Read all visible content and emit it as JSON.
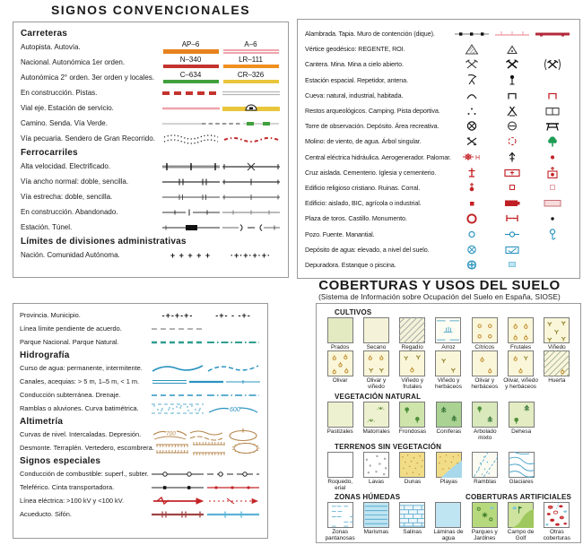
{
  "titles": {
    "main": "SIGNOS  CONVENCIONALES",
    "coberturas": "COBERTURAS Y USOS DEL SUELO",
    "coberturas_sub": "(Sistema de Información sobre Ocupación del Suelo en España, SIOSE)"
  },
  "colors": {
    "autopista_orange": "#e8821e",
    "autovia_pink": "#efa3ab",
    "nacional_red": "#c4332e",
    "autonomica1_orange": "#ef8f1f",
    "autonomica2_green": "#3fa03c",
    "local_yellow": "#e9c63b",
    "symbol_red": "#c32428",
    "symbol_blue": "#2a93c0",
    "water_fill": "#bfe4f2",
    "park_teal": "#2f9e8f",
    "altimetry_brown": "#b5854b",
    "aqueduct_maroon": "#a04545"
  },
  "top_left": {
    "sections": [
      {
        "header": "Carreteras",
        "rows": [
          {
            "label": "Autopista. Autovía.",
            "syms": [
              {
                "t": "shield",
                "name": "autopista-shield",
                "code": "AP–6",
                "color": "#e8821e",
                "h": 5
              },
              {
                "t": "shield",
                "name": "autovia-shield",
                "code": "A–6",
                "color": "#efa3ab",
                "h": 5,
                "stripe": true
              }
            ]
          },
          {
            "label": "Nacional. Autonómica 1er orden.",
            "syms": [
              {
                "t": "shield",
                "name": "nacional-shield",
                "code": "N–340",
                "color": "#c4332e",
                "h": 4
              },
              {
                "t": "shield",
                "name": "autonomica1-shield",
                "code": "LR–111",
                "color": "#ef8f1f",
                "h": 4
              }
            ]
          },
          {
            "label": "Autonómica 2° orden. 3er orden y locales.",
            "syms": [
              {
                "t": "shield",
                "name": "autonomica2-shield",
                "code": "C–634",
                "color": "#3fa03c",
                "h": 4
              },
              {
                "t": "shield",
                "name": "local-shield",
                "code": "CR–326",
                "color": "#e9c63b",
                "h": 4
              }
            ]
          },
          {
            "label": "En construcción. Pistas.",
            "syms": [
              {
                "t": "dash-bar",
                "color": "#c4332e"
              },
              {
                "t": "double-line",
                "color": "#b5b5b5"
              }
            ]
          },
          {
            "label": "Vial eje. Estación de servicio.",
            "syms": [
              {
                "t": "line",
                "color": "#efa3ab",
                "w": 2.5
              },
              {
                "t": "service-station",
                "color": "#e9c63b"
              }
            ]
          },
          {
            "label": "Camino. Senda. Vía Verde.",
            "c3": true,
            "syms": [
              {
                "t": "line",
                "color": "#bdbdbd",
                "w": 2
              },
              {
                "t": "dashes",
                "color": "#333333",
                "w": 1.4
              },
              {
                "t": "via-verde"
              }
            ]
          },
          {
            "label": "Vía pecuaria. Sendero de Gran Recorrido.",
            "syms": [
              {
                "t": "pecuaria"
              },
              {
                "t": "gr-wavy"
              }
            ]
          }
        ]
      },
      {
        "header": "Ferrocarriles",
        "rows": [
          {
            "label": "Alta velocidad. Electrificado.",
            "syms": [
              {
                "t": "rail-hs"
              },
              {
                "t": "rail-elec"
              }
            ]
          },
          {
            "label": "Vía ancho normal: doble, sencilla.",
            "syms": [
              {
                "t": "rail-double"
              },
              {
                "t": "rail-single"
              }
            ]
          },
          {
            "label": "Vía estrecha: doble, sencilla.",
            "syms": [
              {
                "t": "rail-narrow-double"
              },
              {
                "t": "rail-narrow-single"
              }
            ]
          },
          {
            "label": "En construcción. Abandonado.",
            "syms": [
              {
                "t": "rail-constr"
              },
              {
                "t": "rail-aband"
              }
            ]
          },
          {
            "label": "Estación. Túnel.",
            "syms": [
              {
                "t": "rail-station"
              },
              {
                "t": "rail-tunnel"
              }
            ]
          }
        ]
      },
      {
        "header": "Límites de divisiones administrativas",
        "rows": [
          {
            "label": "Nación. Comunidad Autónoma.",
            "syms": [
              {
                "t": "sym-text",
                "text": "+ + + + +"
              },
              {
                "t": "sym-text",
                "text": "·+·+·+·+·"
              }
            ]
          }
        ]
      }
    ]
  },
  "top_right": {
    "rows": [
      {
        "label": "Alambrada. Tapia. Muro de contención  (dique).",
        "syms": [
          {
            "t": "fence"
          },
          {
            "t": "tapia"
          },
          {
            "t": "dique"
          }
        ]
      },
      {
        "label": "Vértice  geodésico: REGENTE, ROI.",
        "syms": [
          {
            "t": "regente"
          },
          {
            "t": "roi"
          }
        ]
      },
      {
        "label": "Cantera. Mina. Mina  a  cielo  abierto.",
        "syms": [
          {
            "t": "mine"
          },
          {
            "t": "mine-bold"
          },
          {
            "t": "mine-open"
          }
        ]
      },
      {
        "label": "Estación  espacial. Repetidor, antena.",
        "syms": [
          {
            "t": "dish"
          },
          {
            "t": "antenna"
          }
        ]
      },
      {
        "label": "Cueva: natural, industrial, habitada.",
        "syms": [
          {
            "t": "cave-nat"
          },
          {
            "t": "cave-ind"
          },
          {
            "t": "cave-hab"
          }
        ]
      },
      {
        "label": "Restos  arqueológicos. Camping. Pista  deportiva.",
        "syms": [
          {
            "t": "archeo"
          },
          {
            "t": "camping"
          },
          {
            "t": "sport"
          }
        ]
      },
      {
        "label": "Torre  de  observación. Depósito. Área  recreativa.",
        "syms": [
          {
            "t": "tower"
          },
          {
            "t": "deposito"
          },
          {
            "t": "picnic"
          }
        ]
      },
      {
        "label": "Molino: de  viento, de  agua. Árbol singular.",
        "syms": [
          {
            "t": "windmill"
          },
          {
            "t": "watermill"
          },
          {
            "t": "tree"
          }
        ]
      },
      {
        "label": "Central eléctrica  hidráulica. Aerogenerador. Palomar.",
        "syms": [
          {
            "t": "hydro",
            "letter": "H"
          },
          {
            "t": "aerogen"
          },
          {
            "t": "palomar"
          }
        ]
      },
      {
        "label": "Cruz  aislada. Cementerio. Iglesia  y  cementerio.",
        "syms": [
          {
            "t": "cruz"
          },
          {
            "t": "cemetery"
          },
          {
            "t": "iglesia-cem"
          }
        ]
      },
      {
        "label": "Edificio  religioso  cristiano. Ruinas. Corral.",
        "syms": [
          {
            "t": "edif-rel"
          },
          {
            "t": "ruinas"
          },
          {
            "t": "corral"
          }
        ]
      },
      {
        "label": "Edificio: aislado, BIC, agrícola  o  industrial.",
        "syms": [
          {
            "t": "edif-a"
          },
          {
            "t": "bic"
          },
          {
            "t": "edif-ind"
          }
        ]
      },
      {
        "label": "Plaza  de  toros. Castillo. Monumento.",
        "syms": [
          {
            "t": "toros"
          },
          {
            "t": "castillo"
          },
          {
            "t": "monumento"
          }
        ]
      },
      {
        "label": "Pozo. Fuente. Manantial.",
        "syms": [
          {
            "t": "pozo"
          },
          {
            "t": "fuente"
          },
          {
            "t": "manantial"
          }
        ]
      },
      {
        "label": "Depósito  de  agua: elevado, a  nivel del suelo.",
        "syms": [
          {
            "t": "dep-elev"
          },
          {
            "t": "dep-suelo"
          }
        ]
      },
      {
        "label": "Depuradora. Estanque  o  piscina.",
        "syms": [
          {
            "t": "depuradora"
          },
          {
            "t": "estanque"
          }
        ]
      }
    ]
  },
  "bottom_left": {
    "sections": [
      {
        "header": null,
        "rows": [
          {
            "label": "Provincia. Municipio.",
            "syms": [
              {
                "t": "sym-text",
                "text": "-+-+-+-"
              },
              {
                "t": "sym-text",
                "text": "-+- - -+-"
              }
            ]
          },
          {
            "label": "Línea  límite  pendiente  de  acuerdo.",
            "syms": [
              {
                "t": "dashes",
                "color": "#9a9a9a",
                "w": 1.4
              },
              {
                "t": "empty"
              }
            ]
          },
          {
            "label": "Parque  Nacional. Parque  Natural.",
            "syms": [
              {
                "t": "dashes",
                "color": "#2f9e8f",
                "w": 2.4
              },
              {
                "t": "dash-dot",
                "color": "#2f9e8f",
                "w": 2
              }
            ]
          }
        ]
      },
      {
        "header": "Hidrografía",
        "rows": [
          {
            "label": "Curso  de  agua: permanente, intermitente.",
            "syms": [
              {
                "t": "curve",
                "color": "#2a93c0"
              },
              {
                "t": "curve-dashed",
                "color": "#2a93c0"
              }
            ]
          },
          {
            "label": "Canales, acequias:  > 5  m, 1–5  m,  < 1  m.",
            "c3": true,
            "syms": [
              {
                "t": "canal-double"
              },
              {
                "t": "canal-mid"
              },
              {
                "t": "canal-thin"
              }
            ]
          },
          {
            "label": "Conducción  subterránea. Drenaje.",
            "syms": [
              {
                "t": "dashes",
                "color": "#2a93c0",
                "w": 1.6
              },
              {
                "t": "dash-dot",
                "color": "#2a93c0",
                "w": 1.6
              }
            ]
          },
          {
            "label": "Ramblas  o  aluviones. Curva  batimétrica.",
            "syms": [
              {
                "t": "ramblas"
              },
              {
                "t": "batimetrica",
                "num": "600"
              }
            ]
          }
        ]
      },
      {
        "header": "Altimetría",
        "rows": [
          {
            "label": "Curvas  de  nivel. Intercaladas. Depresión.",
            "c3": true,
            "syms": [
              {
                "t": "contours",
                "num": "700"
              },
              {
                "t": "intercaladas"
              },
              {
                "t": "depresion"
              }
            ]
          },
          {
            "label": "Desmonte. Terraplén. Vertedero, escombrera.",
            "c3": true,
            "syms": [
              {
                "t": "comb-a"
              },
              {
                "t": "comb-b"
              },
              {
                "t": "blob"
              }
            ]
          }
        ]
      },
      {
        "header": "Signos  especiales",
        "rows": [
          {
            "label": "Conducción  de  combustible: superf., subter.",
            "syms": [
              {
                "t": "pipe-surface"
              },
              {
                "t": "pipe-sub"
              }
            ]
          },
          {
            "label": "Teleférico. Cinta  transportadora.",
            "syms": [
              {
                "t": "teleferico"
              },
              {
                "t": "cinta"
              }
            ]
          },
          {
            "label": "Línea  eléctrica:  >100  kV  y  <100  kV.",
            "syms": [
              {
                "t": "elec-big"
              },
              {
                "t": "elec-small"
              }
            ]
          },
          {
            "label": "Acueducto. Sifón.",
            "syms": [
              {
                "t": "acueducto"
              },
              {
                "t": "sifon"
              }
            ]
          }
        ]
      }
    ]
  },
  "bottom_right": {
    "sections": [
      {
        "headers": [
          "CULTIVOS"
        ],
        "rows": [
          [
            {
              "type": "prados",
              "label": "Prados"
            },
            {
              "type": "secano",
              "label": "Secano"
            },
            {
              "type": "regadio",
              "label": "Regadío"
            },
            {
              "type": "arroz",
              "label": "Arroz"
            },
            {
              "type": "citricos",
              "label": "Cítricos"
            },
            {
              "type": "frutales",
              "label": "Frutales"
            },
            {
              "type": "vinedo",
              "label": "Viñedo"
            }
          ],
          [
            {
              "type": "olivar",
              "label": "Olivar"
            },
            {
              "type": "olivar-vinedo",
              "label": "Olivar y viñedo"
            },
            {
              "type": "vinedo-frutales",
              "label": "Viñedo y frutales"
            },
            {
              "type": "vinedo-herbaceos",
              "label": "Viñedo y herbáceos"
            },
            {
              "type": "olivar-herbaceos",
              "label": "Olivar y herbáceos"
            },
            {
              "type": "olivar-vinedo-herbaceos",
              "label": "Olivar, viñedo y herbáceos"
            },
            {
              "type": "huerta",
              "label": "Huerta"
            }
          ]
        ]
      },
      {
        "headers": [
          "VEGETACIÓN  NATURAL"
        ],
        "rows": [
          [
            {
              "type": "pastizales",
              "label": "Pastizales"
            },
            {
              "type": "matorrales",
              "label": "Matorrales"
            },
            {
              "type": "frondosas",
              "label": "Frondosas"
            },
            {
              "type": "coniferas",
              "label": "Coníferas"
            },
            {
              "type": "arbolado-mixto",
              "label": "Arbolado mixto"
            },
            {
              "type": "dehesa",
              "label": "Dehesa"
            }
          ]
        ]
      },
      {
        "headers": [
          "TERRENOS  SIN  VEGETACIÓN"
        ],
        "rows": [
          [
            {
              "type": "roquedo",
              "label": "Roquedo, erial"
            },
            {
              "type": "lavas",
              "label": "Lavas"
            },
            {
              "type": "dunas",
              "label": "Dunas"
            },
            {
              "type": "playas",
              "label": "Playas"
            },
            {
              "type": "ramblas-cell",
              "label": "Ramblas"
            },
            {
              "type": "glaciares",
              "label": "Glaciares"
            }
          ]
        ]
      },
      {
        "headers": [
          "ZONAS  HÚMEDAS",
          "COBERTURAS  ARTIFICIALES"
        ],
        "rows": [
          [
            {
              "type": "zonas-pantanosas",
              "label": "Zonas pantanosas"
            },
            {
              "type": "marismas",
              "label": "Marismas"
            },
            {
              "type": "salinas",
              "label": "Salinas"
            },
            {
              "type": "laminas",
              "label": "Láminas de agua"
            },
            {
              "type": "parques",
              "label": "Parques y Jardines"
            },
            {
              "type": "golf",
              "label": "Campo de Golf"
            },
            {
              "type": "otras",
              "label": "Otras coberturas"
            }
          ]
        ]
      }
    ]
  }
}
